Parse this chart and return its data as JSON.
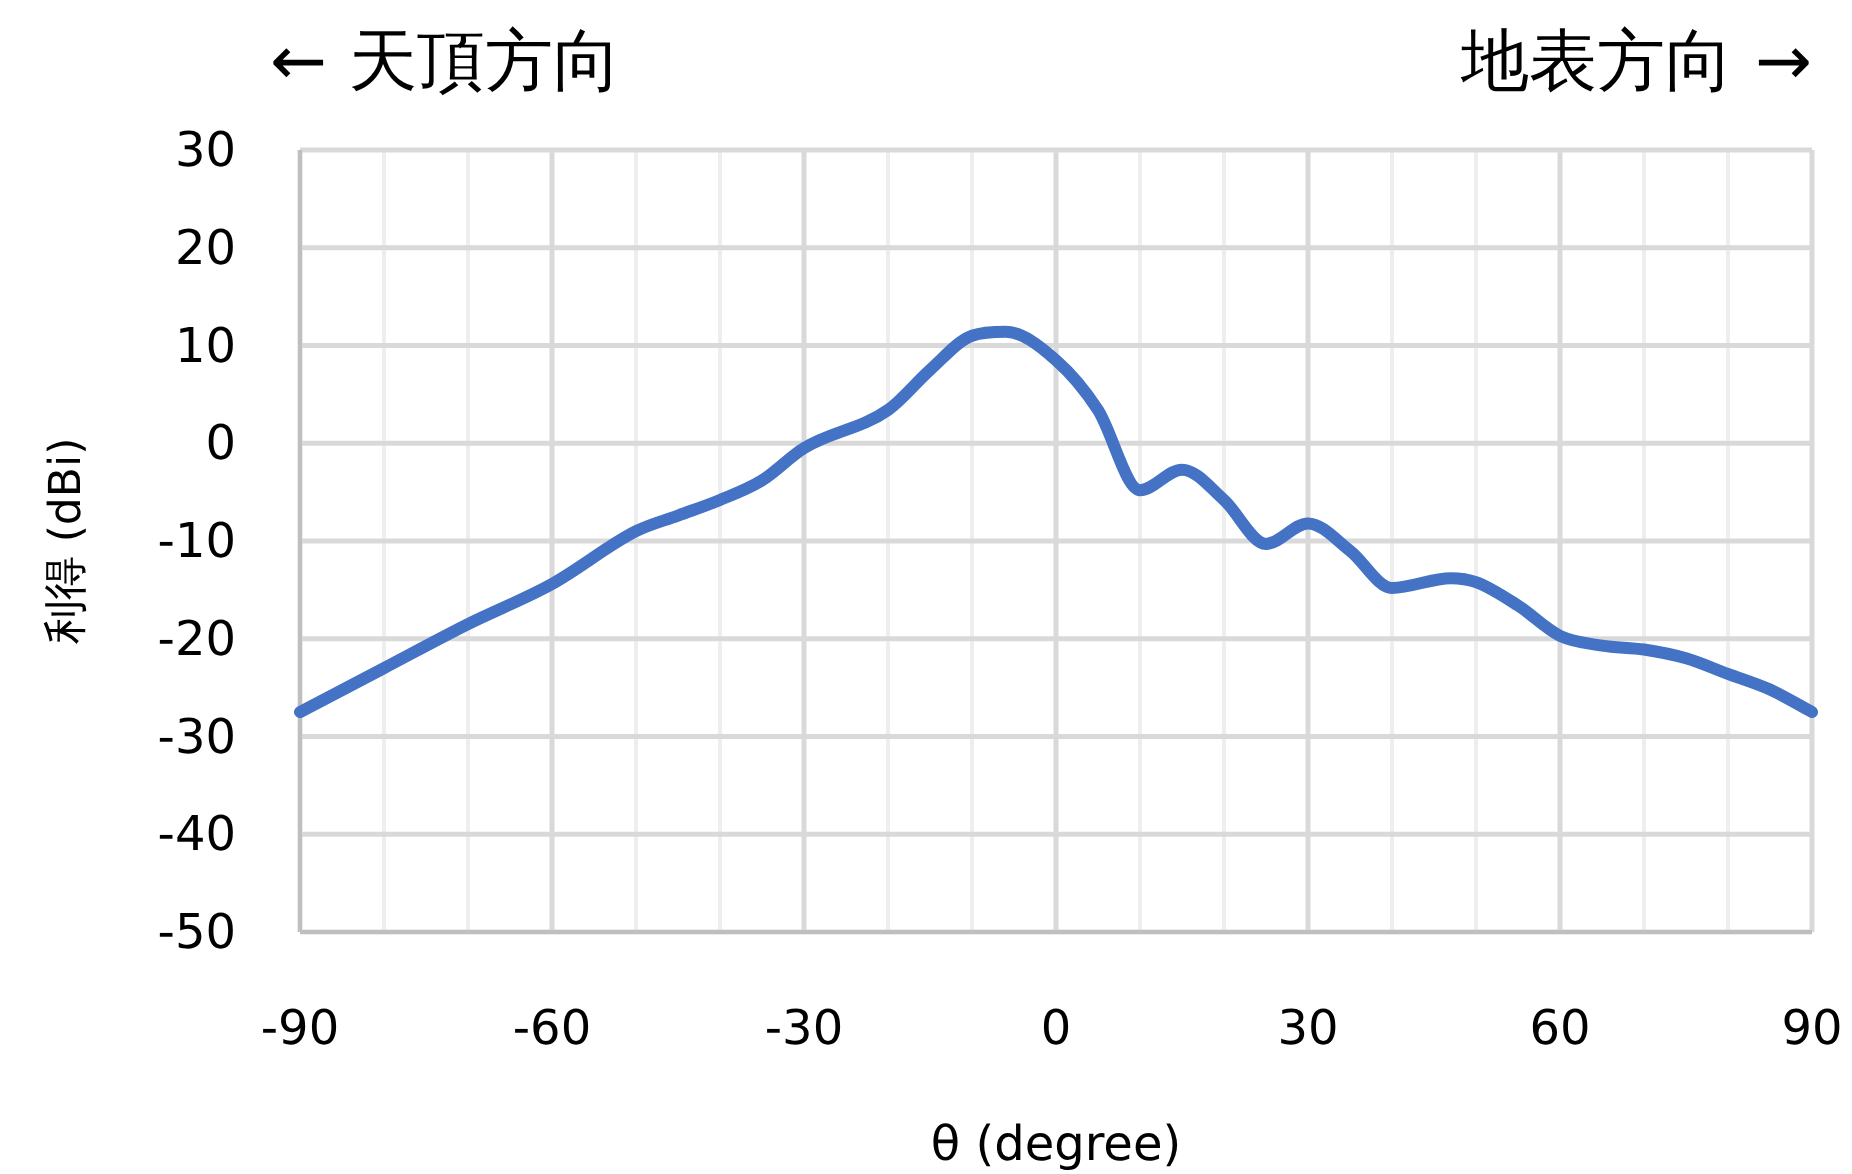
{
  "chart_data": {
    "type": "line",
    "xlabel": "θ (degree)",
    "ylabel": "利得 (dBi)",
    "annotations": [
      "← 天頂方向",
      "地表方向 →"
    ],
    "series": [
      {
        "color": "#4472c4",
        "x": [
          -90,
          -80,
          -70,
          -60,
          -50,
          -45,
          -40,
          -35,
          -30,
          -20,
          -15,
          -10,
          -6,
          0,
          5,
          10,
          15,
          20,
          25,
          30,
          35,
          40,
          47,
          50,
          55,
          60,
          65,
          70,
          75,
          80,
          85,
          90
        ],
        "values": [
          -27.5,
          -23,
          -18.5,
          -14.4,
          -9,
          -7.4,
          -5.8,
          -3.8,
          -0.5,
          3.4,
          7.5,
          11,
          11.4,
          8.5,
          3.4,
          -4.8,
          -2.7,
          -5.8,
          -10.3,
          -8.2,
          -11,
          -14.8,
          -13.8,
          -14.2,
          -16.6,
          -19.7,
          -20.7,
          -21.1,
          -22,
          -23.6,
          -25.2,
          -27.5
        ]
      }
    ],
    "xlim": [
      -90,
      90
    ],
    "xticks": [
      -90,
      {
        "value": -80,
        "label": null
      },
      {
        "value": -70,
        "label": null
      },
      -60,
      {
        "value": -50,
        "label": null
      },
      {
        "value": -40,
        "label": null
      },
      -30,
      {
        "value": -20,
        "label": null
      },
      {
        "value": -10,
        "label": null
      },
      0,
      {
        "value": 10,
        "label": null
      },
      {
        "value": 20,
        "label": null
      },
      30,
      {
        "value": 40,
        "label": null
      },
      {
        "value": 50,
        "label": null
      },
      60,
      {
        "value": 70,
        "label": null
      },
      {
        "value": 80,
        "label": null
      },
      90
    ],
    "ylim": [
      -50,
      30
    ],
    "yticks": [
      -50,
      -40,
      -30,
      -20,
      -10,
      0,
      10,
      20,
      30
    ],
    "grid": true,
    "marker": "none",
    "line_style": "solid"
  }
}
